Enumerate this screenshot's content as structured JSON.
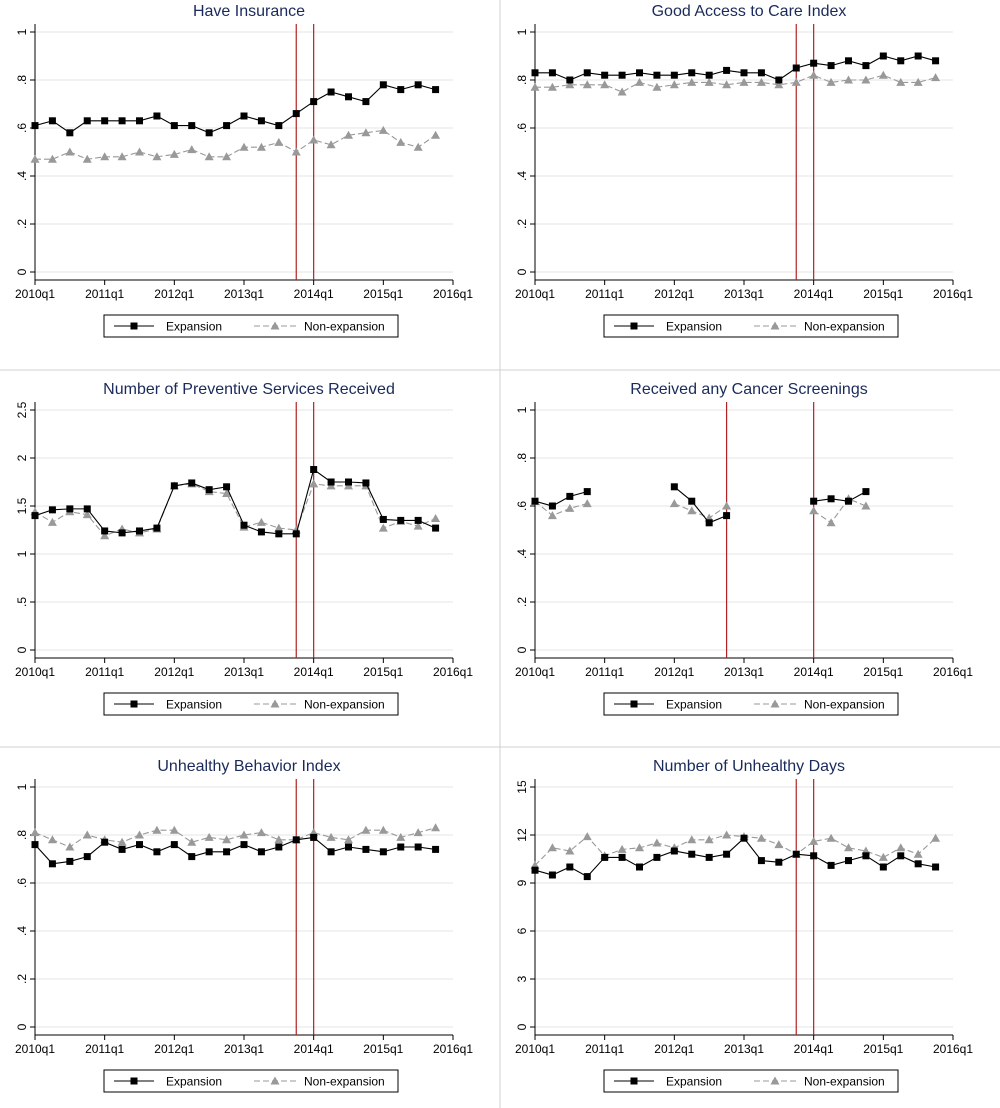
{
  "colors": {
    "expansion": "#000000",
    "non_expansion": "#999999",
    "policy_line": "#b22222",
    "title": "#1a2a5a",
    "grid": "#e6e6e6"
  },
  "chart_data": [
    {
      "type": "line",
      "title": "Have Insurance",
      "x_tick_labels": [
        "2010q1",
        "2011q1",
        "2012q1",
        "2013q1",
        "2014q1",
        "2015q1",
        "2016q1"
      ],
      "y_tick_labels": [
        "0",
        ".2",
        ".4",
        ".6",
        ".8",
        "1"
      ],
      "ylim": [
        0,
        1
      ],
      "y_ticks": [
        0,
        0.2,
        0.4,
        0.6,
        0.8,
        1
      ],
      "vlines": [
        "2013q4",
        "2014q1"
      ],
      "grid": true,
      "legend": "bottom",
      "series": [
        {
          "name": "Expansion",
          "style": "solid",
          "marker": "square",
          "values": [
            0.61,
            0.63,
            0.58,
            0.63,
            0.63,
            0.63,
            0.63,
            0.65,
            0.61,
            0.61,
            0.58,
            0.61,
            0.65,
            0.63,
            0.61,
            0.66,
            0.71,
            0.75,
            0.73,
            0.71,
            0.78,
            0.76,
            0.78,
            0.76
          ]
        },
        {
          "name": "Non-expansion",
          "style": "dashed",
          "marker": "triangle",
          "values": [
            0.47,
            0.47,
            0.5,
            0.47,
            0.48,
            0.48,
            0.5,
            0.48,
            0.49,
            0.51,
            0.48,
            0.48,
            0.52,
            0.52,
            0.54,
            0.5,
            0.55,
            0.53,
            0.57,
            0.58,
            0.59,
            0.54,
            0.52,
            0.57
          ]
        }
      ]
    },
    {
      "type": "line",
      "title": "Good Access to Care Index",
      "x_tick_labels": [
        "2010q1",
        "2011q1",
        "2012q1",
        "2013q1",
        "2014q1",
        "2015q1",
        "2016q1"
      ],
      "y_tick_labels": [
        "0",
        ".2",
        ".4",
        ".6",
        ".8",
        "1"
      ],
      "ylim": [
        0,
        1
      ],
      "y_ticks": [
        0,
        0.2,
        0.4,
        0.6,
        0.8,
        1
      ],
      "vlines": [
        "2013q4",
        "2014q1"
      ],
      "grid": true,
      "legend": "bottom",
      "series": [
        {
          "name": "Expansion",
          "style": "solid",
          "marker": "square",
          "values": [
            0.83,
            0.83,
            0.8,
            0.83,
            0.82,
            0.82,
            0.83,
            0.82,
            0.82,
            0.83,
            0.82,
            0.84,
            0.83,
            0.83,
            0.8,
            0.85,
            0.87,
            0.86,
            0.88,
            0.86,
            0.9,
            0.88,
            0.9,
            0.88
          ]
        },
        {
          "name": "Non-expansion",
          "style": "dashed",
          "marker": "triangle",
          "values": [
            0.77,
            0.77,
            0.78,
            0.78,
            0.78,
            0.75,
            0.79,
            0.77,
            0.78,
            0.79,
            0.79,
            0.78,
            0.79,
            0.79,
            0.78,
            0.79,
            0.82,
            0.79,
            0.8,
            0.8,
            0.82,
            0.79,
            0.79,
            0.81
          ]
        }
      ]
    },
    {
      "type": "line",
      "title": "Number of Preventive Services Received",
      "x_tick_labels": [
        "2010q1",
        "2011q1",
        "2012q1",
        "2013q1",
        "2014q1",
        "2015q1",
        "2016q1"
      ],
      "y_tick_labels": [
        "0",
        ".5",
        "1",
        "1.5",
        "2",
        "2.5"
      ],
      "ylim": [
        0,
        2.5
      ],
      "y_ticks": [
        0,
        0.5,
        1,
        1.5,
        2,
        2.5
      ],
      "vlines": [
        "2013q4",
        "2014q1"
      ],
      "grid": true,
      "legend": "bottom",
      "series": [
        {
          "name": "Expansion",
          "style": "solid",
          "marker": "square",
          "values": [
            1.4,
            1.46,
            1.47,
            1.47,
            1.24,
            1.22,
            1.24,
            1.27,
            1.71,
            1.74,
            1.67,
            1.7,
            1.3,
            1.23,
            1.21,
            1.21,
            1.88,
            1.75,
            1.75,
            1.74,
            1.36,
            1.35,
            1.35,
            1.27
          ]
        },
        {
          "name": "Non-expansion",
          "style": "dashed",
          "marker": "triangle",
          "values": [
            1.44,
            1.33,
            1.44,
            1.41,
            1.19,
            1.26,
            1.22,
            1.26,
            1.71,
            1.73,
            1.65,
            1.63,
            1.28,
            1.33,
            1.27,
            1.25,
            1.73,
            1.71,
            1.71,
            1.71,
            1.27,
            1.34,
            1.29,
            1.37
          ]
        }
      ]
    },
    {
      "type": "line",
      "title": "Received any Cancer Screenings",
      "x_tick_labels": [
        "2010q1",
        "2011q1",
        "2012q1",
        "2013q1",
        "2014q1",
        "2015q1",
        "2016q1"
      ],
      "y_tick_labels": [
        "0",
        ".2",
        ".4",
        ".6",
        ".8",
        "1"
      ],
      "ylim": [
        0,
        1
      ],
      "y_ticks": [
        0,
        0.2,
        0.4,
        0.6,
        0.8,
        1
      ],
      "vlines": [
        "2012q4",
        "2014q1"
      ],
      "grid": true,
      "legend": "bottom",
      "series": [
        {
          "name": "Expansion",
          "style": "solid",
          "marker": "square",
          "values": [
            0.62,
            0.6,
            0.64,
            0.66,
            null,
            null,
            null,
            null,
            0.68,
            0.62,
            0.53,
            0.56,
            null,
            null,
            null,
            null,
            0.62,
            0.63,
            0.62,
            0.66,
            null,
            null,
            null,
            null
          ]
        },
        {
          "name": "Non-expansion",
          "style": "dashed",
          "marker": "triangle",
          "values": [
            0.62,
            0.56,
            0.59,
            0.61,
            null,
            null,
            null,
            null,
            0.61,
            0.58,
            0.55,
            0.6,
            null,
            null,
            null,
            null,
            0.58,
            0.53,
            0.63,
            0.6,
            null,
            null,
            null,
            null
          ]
        }
      ]
    },
    {
      "type": "line",
      "title": "Unhealthy Behavior Index",
      "x_tick_labels": [
        "2010q1",
        "2011q1",
        "2012q1",
        "2013q1",
        "2014q1",
        "2015q1",
        "2016q1"
      ],
      "y_tick_labels": [
        "0",
        ".2",
        ".4",
        ".6",
        ".8",
        "1"
      ],
      "ylim": [
        0,
        1
      ],
      "y_ticks": [
        0,
        0.2,
        0.4,
        0.6,
        0.8,
        1
      ],
      "vlines": [
        "2013q4",
        "2014q1"
      ],
      "grid": true,
      "legend": "bottom",
      "series": [
        {
          "name": "Expansion",
          "style": "solid",
          "marker": "square",
          "values": [
            0.76,
            0.68,
            0.69,
            0.71,
            0.77,
            0.74,
            0.76,
            0.73,
            0.76,
            0.71,
            0.73,
            0.73,
            0.76,
            0.73,
            0.75,
            0.78,
            0.79,
            0.73,
            0.75,
            0.74,
            0.73,
            0.75,
            0.75,
            0.74
          ]
        },
        {
          "name": "Non-expansion",
          "style": "dashed",
          "marker": "triangle",
          "values": [
            0.81,
            0.78,
            0.75,
            0.8,
            0.78,
            0.77,
            0.8,
            0.82,
            0.82,
            0.77,
            0.79,
            0.78,
            0.8,
            0.81,
            0.78,
            0.78,
            0.81,
            0.79,
            0.78,
            0.82,
            0.82,
            0.79,
            0.81,
            0.83
          ]
        }
      ]
    },
    {
      "type": "line",
      "title": "Number of Unhealthy Days",
      "x_tick_labels": [
        "2010q1",
        "2011q1",
        "2012q1",
        "2013q1",
        "2014q1",
        "2015q1",
        "2016q1"
      ],
      "y_tick_labels": [
        "0",
        "3",
        "6",
        "9",
        "12",
        "15"
      ],
      "ylim": [
        0,
        15
      ],
      "y_ticks": [
        0,
        3,
        6,
        9,
        12,
        15
      ],
      "vlines": [
        "2013q4",
        "2014q1"
      ],
      "grid": true,
      "legend": "bottom",
      "series": [
        {
          "name": "Expansion",
          "style": "solid",
          "marker": "square",
          "values": [
            9.8,
            9.5,
            10.0,
            9.4,
            10.6,
            10.6,
            10.0,
            10.6,
            11.0,
            10.8,
            10.6,
            10.8,
            11.8,
            10.4,
            10.3,
            10.8,
            10.7,
            10.1,
            10.4,
            10.7,
            10.0,
            10.7,
            10.2,
            10.0
          ]
        },
        {
          "name": "Non-expansion",
          "style": "dashed",
          "marker": "triangle",
          "values": [
            10.1,
            11.2,
            11.0,
            11.9,
            10.7,
            11.1,
            11.2,
            11.5,
            11.2,
            11.7,
            11.7,
            12.0,
            11.9,
            11.8,
            11.4,
            10.8,
            11.6,
            11.8,
            11.2,
            11.0,
            10.6,
            11.2,
            10.8,
            11.8
          ]
        }
      ]
    }
  ]
}
